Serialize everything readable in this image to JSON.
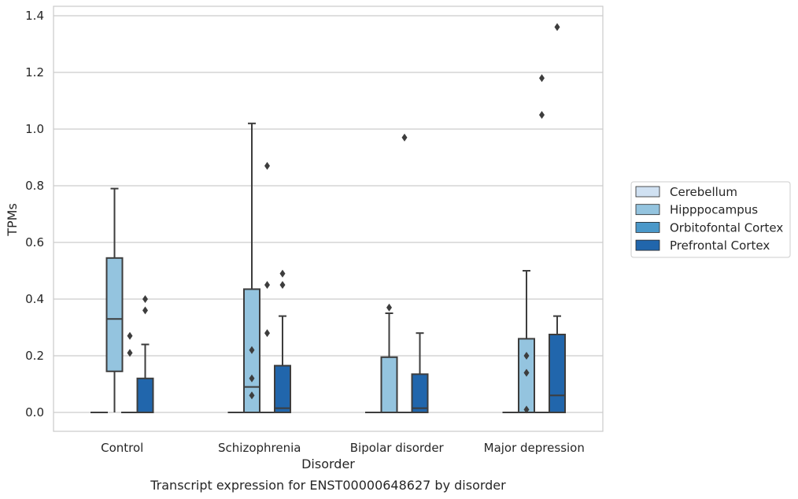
{
  "chart_data": {
    "type": "boxplot",
    "title": "",
    "caption": "Transcript expression for ENST00000648627 by disorder",
    "xlabel": "Disorder",
    "ylabel": "TPMs",
    "ylim": [
      -0.065,
      1.43
    ],
    "yticks": [
      "0.0",
      "0.2",
      "0.4",
      "0.6",
      "0.8",
      "1.0",
      "1.2",
      "1.4"
    ],
    "categories": [
      "Control",
      "Schizophrenia",
      "Bipolar disorder",
      "Major depression"
    ],
    "grid": "horizontal",
    "legend_position": "right",
    "series": [
      {
        "name": "Cerebellum",
        "color": "#d0e1f2",
        "boxes": [
          {
            "q1": 0,
            "median": 0,
            "q3": 0,
            "whisker_low": 0,
            "whisker_high": 0,
            "outliers": []
          },
          {
            "q1": 0,
            "median": 0,
            "q3": 0,
            "whisker_low": 0,
            "whisker_high": 0,
            "outliers": []
          },
          {
            "q1": 0,
            "median": 0,
            "q3": 0,
            "whisker_low": 0,
            "whisker_high": 0,
            "outliers": []
          },
          {
            "q1": 0,
            "median": 0,
            "q3": 0,
            "whisker_low": 0,
            "whisker_high": 0,
            "outliers": []
          }
        ]
      },
      {
        "name": "Hipppocampus",
        "color": "#94c4df",
        "boxes": [
          {
            "q1": 0.145,
            "median": 0.33,
            "q3": 0.545,
            "whisker_low": 0,
            "whisker_high": 0.79,
            "outliers": []
          },
          {
            "q1": 0,
            "median": 0.09,
            "q3": 0.435,
            "whisker_low": 0,
            "whisker_high": 1.02,
            "outliers": [
              0.22,
              0.12,
              0.06
            ]
          },
          {
            "q1": 0,
            "median": 0,
            "q3": 0.195,
            "whisker_low": 0,
            "whisker_high": 0.35,
            "outliers": [
              0.37
            ]
          },
          {
            "q1": 0,
            "median": 0,
            "q3": 0.26,
            "whisker_low": 0,
            "whisker_high": 0.5,
            "outliers": [
              0.2,
              0.14,
              0.01
            ]
          }
        ]
      },
      {
        "name": "Orbitofontal Cortex",
        "color": "#4a98c9",
        "boxes": [
          {
            "q1": 0,
            "median": 0,
            "q3": 0,
            "whisker_low": 0,
            "whisker_high": 0,
            "outliers": [
              0.27,
              0.21
            ]
          },
          {
            "q1": 0,
            "median": 0,
            "q3": 0,
            "whisker_low": 0,
            "whisker_high": 0,
            "outliers": [
              0.87,
              0.45,
              0.28
            ]
          },
          {
            "q1": 0,
            "median": 0,
            "q3": 0,
            "whisker_low": 0,
            "whisker_high": 0,
            "outliers": [
              0.97
            ]
          },
          {
            "q1": 0,
            "median": 0,
            "q3": 0,
            "whisker_low": 0,
            "whisker_high": 0,
            "outliers": [
              1.18,
              1.05
            ]
          }
        ]
      },
      {
        "name": "Prefrontal Cortex",
        "color": "#2166ac",
        "boxes": [
          {
            "q1": 0,
            "median": 0,
            "q3": 0.12,
            "whisker_low": 0,
            "whisker_high": 0.24,
            "outliers": [
              0.4,
              0.36
            ]
          },
          {
            "q1": 0,
            "median": 0.015,
            "q3": 0.165,
            "whisker_low": 0,
            "whisker_high": 0.34,
            "outliers": [
              0.49,
              0.45
            ]
          },
          {
            "q1": 0,
            "median": 0.015,
            "q3": 0.135,
            "whisker_low": 0,
            "whisker_high": 0.28,
            "outliers": []
          },
          {
            "q1": 0,
            "median": 0.06,
            "q3": 0.275,
            "whisker_low": 0,
            "whisker_high": 0.34,
            "outliers": [
              1.36
            ]
          }
        ]
      }
    ]
  }
}
